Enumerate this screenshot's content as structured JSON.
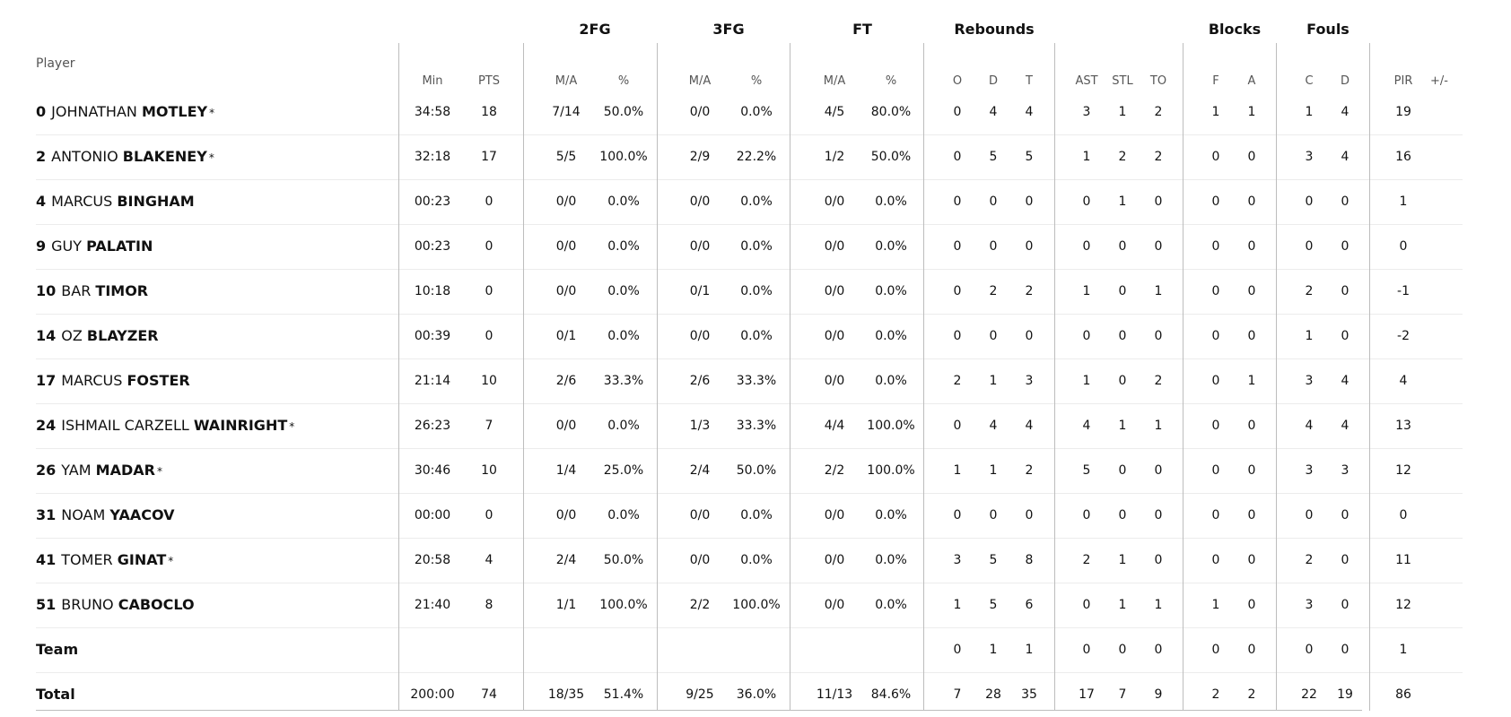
{
  "groups": {
    "two": "2FG",
    "three": "3FG",
    "ft": "FT",
    "reb": "Rebounds",
    "blk": "Blocks",
    "fouls": "Fouls"
  },
  "columns": {
    "player": "Player",
    "min": "Min",
    "pts": "PTS",
    "two_ma": "M/A",
    "two_pct": "%",
    "three_ma": "M/A",
    "three_pct": "%",
    "ft_ma": "M/A",
    "ft_pct": "%",
    "reb_o": "O",
    "reb_d": "D",
    "reb_t": "T",
    "ast": "AST",
    "stl": "STL",
    "to": "TO",
    "blk_f": "F",
    "blk_a": "A",
    "foul_c": "C",
    "foul_d": "D",
    "pir": "PIR",
    "pm": "+/-"
  },
  "players": [
    {
      "num": "0",
      "first": "JOHNATHAN",
      "last": "MOTLEY",
      "starter": "*",
      "min": "34:58",
      "pts": "18",
      "two_ma": "7/14",
      "two_pct": "50.0%",
      "three_ma": "0/0",
      "three_pct": "0.0%",
      "ft_ma": "4/5",
      "ft_pct": "80.0%",
      "reb_o": "0",
      "reb_d": "4",
      "reb_t": "4",
      "ast": "3",
      "stl": "1",
      "to": "2",
      "blk_f": "1",
      "blk_a": "1",
      "foul_c": "1",
      "foul_d": "4",
      "pir": "19",
      "pm": ""
    },
    {
      "num": "2",
      "first": "ANTONIO",
      "last": "BLAKENEY",
      "starter": "*",
      "min": "32:18",
      "pts": "17",
      "two_ma": "5/5",
      "two_pct": "100.0%",
      "three_ma": "2/9",
      "three_pct": "22.2%",
      "ft_ma": "1/2",
      "ft_pct": "50.0%",
      "reb_o": "0",
      "reb_d": "5",
      "reb_t": "5",
      "ast": "1",
      "stl": "2",
      "to": "2",
      "blk_f": "0",
      "blk_a": "0",
      "foul_c": "3",
      "foul_d": "4",
      "pir": "16",
      "pm": ""
    },
    {
      "num": "4",
      "first": "MARCUS",
      "last": "BINGHAM",
      "starter": "",
      "min": "00:23",
      "pts": "0",
      "two_ma": "0/0",
      "two_pct": "0.0%",
      "three_ma": "0/0",
      "three_pct": "0.0%",
      "ft_ma": "0/0",
      "ft_pct": "0.0%",
      "reb_o": "0",
      "reb_d": "0",
      "reb_t": "0",
      "ast": "0",
      "stl": "1",
      "to": "0",
      "blk_f": "0",
      "blk_a": "0",
      "foul_c": "0",
      "foul_d": "0",
      "pir": "1",
      "pm": ""
    },
    {
      "num": "9",
      "first": "GUY",
      "last": "PALATIN",
      "starter": "",
      "min": "00:23",
      "pts": "0",
      "two_ma": "0/0",
      "two_pct": "0.0%",
      "three_ma": "0/0",
      "three_pct": "0.0%",
      "ft_ma": "0/0",
      "ft_pct": "0.0%",
      "reb_o": "0",
      "reb_d": "0",
      "reb_t": "0",
      "ast": "0",
      "stl": "0",
      "to": "0",
      "blk_f": "0",
      "blk_a": "0",
      "foul_c": "0",
      "foul_d": "0",
      "pir": "0",
      "pm": ""
    },
    {
      "num": "10",
      "first": "BAR",
      "last": "TIMOR",
      "starter": "",
      "min": "10:18",
      "pts": "0",
      "two_ma": "0/0",
      "two_pct": "0.0%",
      "three_ma": "0/1",
      "three_pct": "0.0%",
      "ft_ma": "0/0",
      "ft_pct": "0.0%",
      "reb_o": "0",
      "reb_d": "2",
      "reb_t": "2",
      "ast": "1",
      "stl": "0",
      "to": "1",
      "blk_f": "0",
      "blk_a": "0",
      "foul_c": "2",
      "foul_d": "0",
      "pir": "-1",
      "pm": ""
    },
    {
      "num": "14",
      "first": "OZ",
      "last": "BLAYZER",
      "starter": "",
      "min": "00:39",
      "pts": "0",
      "two_ma": "0/1",
      "two_pct": "0.0%",
      "three_ma": "0/0",
      "three_pct": "0.0%",
      "ft_ma": "0/0",
      "ft_pct": "0.0%",
      "reb_o": "0",
      "reb_d": "0",
      "reb_t": "0",
      "ast": "0",
      "stl": "0",
      "to": "0",
      "blk_f": "0",
      "blk_a": "0",
      "foul_c": "1",
      "foul_d": "0",
      "pir": "-2",
      "pm": ""
    },
    {
      "num": "17",
      "first": "MARCUS",
      "last": "FOSTER",
      "starter": "",
      "min": "21:14",
      "pts": "10",
      "two_ma": "2/6",
      "two_pct": "33.3%",
      "three_ma": "2/6",
      "three_pct": "33.3%",
      "ft_ma": "0/0",
      "ft_pct": "0.0%",
      "reb_o": "2",
      "reb_d": "1",
      "reb_t": "3",
      "ast": "1",
      "stl": "0",
      "to": "2",
      "blk_f": "0",
      "blk_a": "1",
      "foul_c": "3",
      "foul_d": "4",
      "pir": "4",
      "pm": ""
    },
    {
      "num": "24",
      "first": "ISHMAIL CARZELL",
      "last": "WAINRIGHT",
      "starter": "*",
      "min": "26:23",
      "pts": "7",
      "two_ma": "0/0",
      "two_pct": "0.0%",
      "three_ma": "1/3",
      "three_pct": "33.3%",
      "ft_ma": "4/4",
      "ft_pct": "100.0%",
      "reb_o": "0",
      "reb_d": "4",
      "reb_t": "4",
      "ast": "4",
      "stl": "1",
      "to": "1",
      "blk_f": "0",
      "blk_a": "0",
      "foul_c": "4",
      "foul_d": "4",
      "pir": "13",
      "pm": ""
    },
    {
      "num": "26",
      "first": "YAM",
      "last": "MADAR",
      "starter": "*",
      "min": "30:46",
      "pts": "10",
      "two_ma": "1/4",
      "two_pct": "25.0%",
      "three_ma": "2/4",
      "three_pct": "50.0%",
      "ft_ma": "2/2",
      "ft_pct": "100.0%",
      "reb_o": "1",
      "reb_d": "1",
      "reb_t": "2",
      "ast": "5",
      "stl": "0",
      "to": "0",
      "blk_f": "0",
      "blk_a": "0",
      "foul_c": "3",
      "foul_d": "3",
      "pir": "12",
      "pm": ""
    },
    {
      "num": "31",
      "first": "NOAM",
      "last": "YAACOV",
      "starter": "",
      "min": "00:00",
      "pts": "0",
      "two_ma": "0/0",
      "two_pct": "0.0%",
      "three_ma": "0/0",
      "three_pct": "0.0%",
      "ft_ma": "0/0",
      "ft_pct": "0.0%",
      "reb_o": "0",
      "reb_d": "0",
      "reb_t": "0",
      "ast": "0",
      "stl": "0",
      "to": "0",
      "blk_f": "0",
      "blk_a": "0",
      "foul_c": "0",
      "foul_d": "0",
      "pir": "0",
      "pm": ""
    },
    {
      "num": "41",
      "first": "TOMER",
      "last": "GINAT",
      "starter": "*",
      "min": "20:58",
      "pts": "4",
      "two_ma": "2/4",
      "two_pct": "50.0%",
      "three_ma": "0/0",
      "three_pct": "0.0%",
      "ft_ma": "0/0",
      "ft_pct": "0.0%",
      "reb_o": "3",
      "reb_d": "5",
      "reb_t": "8",
      "ast": "2",
      "stl": "1",
      "to": "0",
      "blk_f": "0",
      "blk_a": "0",
      "foul_c": "2",
      "foul_d": "0",
      "pir": "11",
      "pm": ""
    },
    {
      "num": "51",
      "first": "BRUNO",
      "last": "CABOCLO",
      "starter": "",
      "min": "21:40",
      "pts": "8",
      "two_ma": "1/1",
      "two_pct": "100.0%",
      "three_ma": "2/2",
      "three_pct": "100.0%",
      "ft_ma": "0/0",
      "ft_pct": "0.0%",
      "reb_o": "1",
      "reb_d": "5",
      "reb_t": "6",
      "ast": "0",
      "stl": "1",
      "to": "1",
      "blk_f": "1",
      "blk_a": "0",
      "foul_c": "3",
      "foul_d": "0",
      "pir": "12",
      "pm": ""
    }
  ],
  "team": {
    "label": "Team",
    "reb_o": "0",
    "reb_d": "1",
    "reb_t": "1",
    "ast": "0",
    "stl": "0",
    "to": "0",
    "blk_f": "0",
    "blk_a": "0",
    "foul_c": "0",
    "foul_d": "0",
    "pir": "1"
  },
  "total": {
    "label": "Total",
    "min": "200:00",
    "pts": "74",
    "two_ma": "18/35",
    "two_pct": "51.4%",
    "three_ma": "9/25",
    "three_pct": "36.0%",
    "ft_ma": "11/13",
    "ft_pct": "84.6%",
    "reb_o": "7",
    "reb_d": "28",
    "reb_t": "35",
    "ast": "17",
    "stl": "7",
    "to": "9",
    "blk_f": "2",
    "blk_a": "2",
    "foul_c": "22",
    "foul_d": "19",
    "pir": "86"
  }
}
